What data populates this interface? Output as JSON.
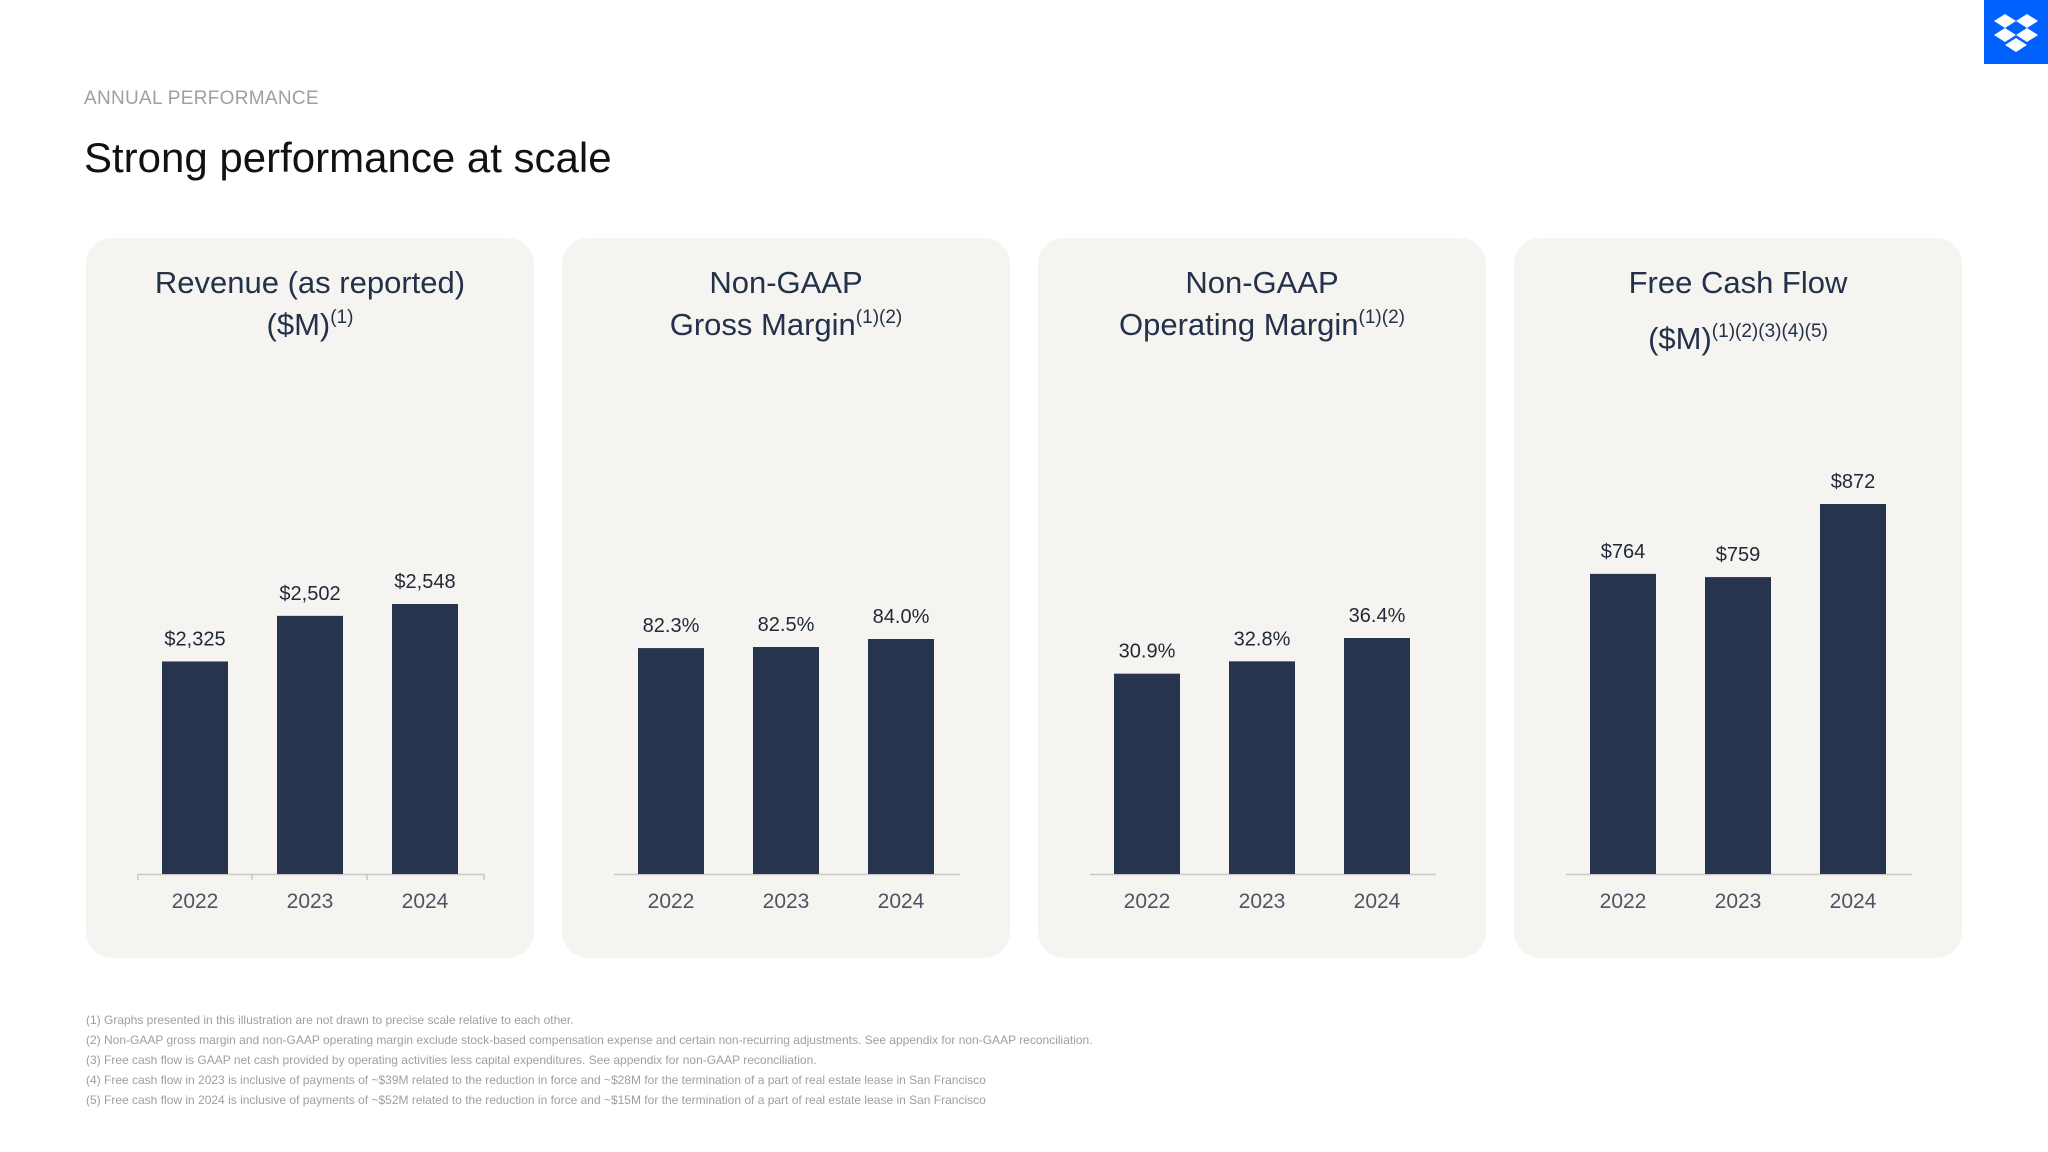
{
  "header": {
    "eyebrow": "ANNUAL PERFORMANCE",
    "title": "Strong performance at scale"
  },
  "brand": {
    "logo_icon": "dropbox-logo-icon",
    "color": "#0061fe"
  },
  "colors": {
    "bar": "#26344d",
    "panel_bg": "#f5f4f1",
    "axis": "#c8c8c8"
  },
  "panels": [
    {
      "title_line1": "Revenue (as reported)",
      "title_line2": "($M)",
      "title_sup": "(1)"
    },
    {
      "title_line1": "Non-GAAP",
      "title_line2": "Gross Margin",
      "title_sup": "(1)(2)"
    },
    {
      "title_line1": "Non-GAAP",
      "title_line2": "Operating Margin",
      "title_sup": "(1)(2)"
    },
    {
      "title_line1": "Free Cash Flow",
      "title_line2": "($M)",
      "title_sup": "(1)(2)(3)(4)(5)"
    }
  ],
  "chart_data": [
    {
      "type": "bar",
      "title": "Revenue (as reported) ($M)",
      "categories": [
        "2022",
        "2023",
        "2024"
      ],
      "values": [
        2325,
        2502,
        2548
      ],
      "labels": [
        "$2,325",
        "$2,502",
        "$2,548"
      ],
      "ylim": [
        0,
        3000
      ]
    },
    {
      "type": "bar",
      "title": "Non-GAAP Gross Margin",
      "categories": [
        "2022",
        "2023",
        "2024"
      ],
      "values": [
        82.3,
        82.5,
        84.0
      ],
      "labels": [
        "82.3%",
        "82.5%",
        "84.0%"
      ],
      "ylim": [
        0,
        100
      ]
    },
    {
      "type": "bar",
      "title": "Non-GAAP Operating Margin",
      "categories": [
        "2022",
        "2023",
        "2024"
      ],
      "values": [
        30.9,
        32.8,
        36.4
      ],
      "labels": [
        "30.9%",
        "32.8%",
        "36.4%"
      ],
      "ylim": [
        0,
        50
      ]
    },
    {
      "type": "bar",
      "title": "Free Cash Flow ($M)",
      "categories": [
        "2022",
        "2023",
        "2024"
      ],
      "values": [
        764,
        759,
        872
      ],
      "labels": [
        "$764",
        "$759",
        "$872"
      ],
      "ylim": [
        0,
        1000
      ]
    }
  ],
  "footnotes": [
    "(1) Graphs presented in this illustration are not drawn to precise scale relative to each other.",
    "(2) Non-GAAP gross margin and non-GAAP operating margin exclude stock-based compensation expense and certain non-recurring adjustments. See appendix for non-GAAP reconciliation.",
    "(3) Free cash flow is GAAP net cash provided by operating activities less capital expenditures. See appendix for non-GAAP reconciliation.",
    "(4) Free cash flow in 2023 is inclusive of payments of ~$39M related to the reduction in force and ~$28M for the termination of a part of real estate lease in San Francisco",
    "(5) Free cash flow in 2024 is inclusive of payments of ~$52M related to the reduction in force and ~$15M for the termination of a part of real estate lease in San Francisco"
  ]
}
